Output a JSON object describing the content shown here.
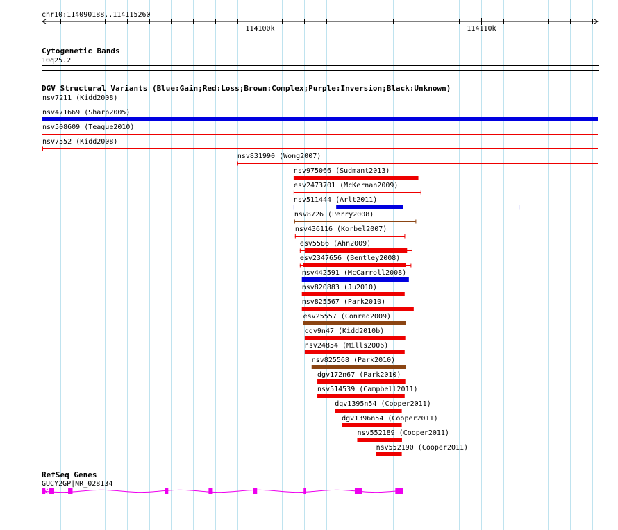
{
  "ruler": {
    "location": "chr10:114090188..114115260",
    "ticks": [
      {
        "pos": 114100000,
        "label": "114100k"
      },
      {
        "pos": 114110000,
        "label": "114110k"
      }
    ]
  },
  "view": {
    "start": 114090188,
    "end": 114115260
  },
  "cytoband": {
    "track_title": "Cytogenetic Bands",
    "band": "10q25.2"
  },
  "dgv": {
    "track_title": "DGV Structural Variants (Blue:Gain;Red:Loss;Brown:Complex;Purple:Inversion;Black:Unknown)",
    "colors": {
      "gain": "#0000e0",
      "loss": "#ee0000",
      "complex": "#8b4513"
    },
    "variants": [
      {
        "label": "nsv7211 (Kidd2008)",
        "type": "loss",
        "style": "line",
        "start": 114090188,
        "end": 114115260
      },
      {
        "label": "nsv471669 (Sharp2005)",
        "type": "gain",
        "style": "bar",
        "start": 114090188,
        "end": 114115260
      },
      {
        "label": "nsv508609 (Teague2010)",
        "type": "loss",
        "style": "line",
        "start": 114090188,
        "end": 114115260
      },
      {
        "label": "nsv7552 (Kidd2008)",
        "type": "loss",
        "style": "capped-line",
        "start": 114090188,
        "end": 114115260
      },
      {
        "label": "nsv831990 (Wong2007)",
        "type": "loss",
        "style": "capped-line",
        "start": 114098990,
        "end": 114115260
      },
      {
        "label": "nsv975066 (Sudmant2013)",
        "type": "loss",
        "style": "bar",
        "start": 114101530,
        "end": 114107160
      },
      {
        "label": "esv2473701 (McKernan2009)",
        "type": "loss",
        "style": "capped-line",
        "start": 114101530,
        "end": 114107260
      },
      {
        "label": "nsv511444 (Arlt2011)",
        "type": "gain",
        "style": "split",
        "start": 114101530,
        "end": 114111690,
        "thick_start": 114103450,
        "thick_end": 114106480
      },
      {
        "label": "nsv8726 (Perry2008)",
        "type": "complex",
        "style": "capped-line",
        "start": 114101560,
        "end": 114107030
      },
      {
        "label": "nsv436116 (Korbel2007)",
        "type": "loss",
        "style": "capped-line",
        "start": 114101590,
        "end": 114106530
      },
      {
        "label": "esv5586 (Ahn2009)",
        "type": "loss",
        "style": "capped-bar",
        "start": 114101810,
        "end": 114106860,
        "thick_start": 114102030,
        "thick_end": 114106650
      },
      {
        "label": "esv2347656 (Bentley2008)",
        "type": "loss",
        "style": "capped-bar",
        "start": 114101810,
        "end": 114106810,
        "thick_start": 114101970,
        "thick_end": 114106600
      },
      {
        "label": "nsv442591 (McCarroll2008)",
        "type": "gain",
        "style": "bar",
        "start": 114101900,
        "end": 114106730
      },
      {
        "label": "nsv820883 (Ju2010)",
        "type": "loss",
        "style": "bar",
        "start": 114101900,
        "end": 114106540
      },
      {
        "label": "nsv825567 (Park2010)",
        "type": "loss",
        "style": "bar",
        "start": 114101900,
        "end": 114106950
      },
      {
        "label": "esv25557 (Conrad2009)",
        "type": "complex",
        "style": "bar",
        "start": 114101960,
        "end": 114106600
      },
      {
        "label": "dgv9n47 (Kidd2010b)",
        "type": "loss",
        "style": "bar",
        "start": 114102030,
        "end": 114106570
      },
      {
        "label": "nsv24854 (Mills2006)",
        "type": "loss",
        "style": "bar",
        "start": 114102030,
        "end": 114106540
      },
      {
        "label": "nsv825568 (Park2010)",
        "type": "complex",
        "style": "bar",
        "start": 114102340,
        "end": 114106600
      },
      {
        "label": "dgv172n67 (Park2010)",
        "type": "loss",
        "style": "bar",
        "start": 114102600,
        "end": 114106570
      },
      {
        "label": "nsv514539 (Campbell2011)",
        "type": "loss",
        "style": "bar",
        "start": 114102600,
        "end": 114106540
      },
      {
        "label": "dgv1395n54 (Cooper2011)",
        "type": "loss",
        "style": "bar",
        "start": 114103390,
        "end": 114106410
      },
      {
        "label": "dgv1396n54 (Cooper2011)",
        "type": "loss",
        "style": "bar",
        "start": 114103700,
        "end": 114106410
      },
      {
        "label": "nsv552189 (Cooper2011)",
        "type": "loss",
        "style": "bar",
        "start": 114104400,
        "end": 114106420
      },
      {
        "label": "nsv552190 (Cooper2011)",
        "type": "loss",
        "style": "bar",
        "start": 114105250,
        "end": 114106410
      }
    ]
  },
  "refseq": {
    "track_title": "RefSeq Genes",
    "gene_label": "GUCY2GP|NR_028134",
    "color": "#ee00ee",
    "start": 114090188,
    "end": 114106460,
    "exons": [
      {
        "start": 114090188,
        "end": 114090320
      },
      {
        "start": 114090480,
        "end": 114090720
      },
      {
        "start": 114091350,
        "end": 114091550
      },
      {
        "start": 114095720,
        "end": 114095870
      },
      {
        "start": 114097690,
        "end": 114097880
      },
      {
        "start": 114099690,
        "end": 114099880
      },
      {
        "start": 114101980,
        "end": 114102090
      },
      {
        "start": 114104290,
        "end": 114104630
      },
      {
        "start": 114106120,
        "end": 114106460
      }
    ]
  }
}
